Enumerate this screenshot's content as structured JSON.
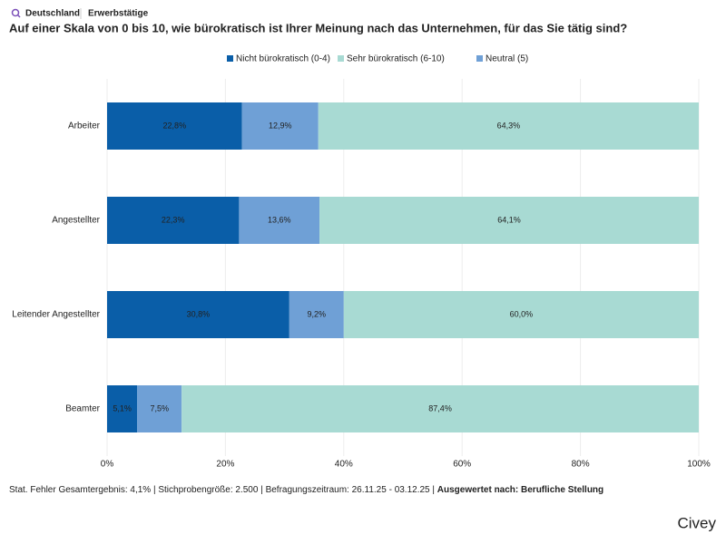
{
  "header": {
    "country": "Deutschland",
    "population": "Erwerbstätige"
  },
  "chart_data": {
    "type": "stacked_bar_horizontal",
    "title": "Auf einer Skala von 0 bis 10, wie bürokratisch ist Ihrer Meinung nach das Unternehmen, für das Sie tätig sind?",
    "categories": [
      "Arbeiter",
      "Angestellter",
      "Leitender Angestellter",
      "Beamter"
    ],
    "series": [
      {
        "name": "Nicht bürokratisch (0-4)",
        "color": "#0a5ea8",
        "values": [
          22.8,
          22.3,
          30.8,
          5.1
        ],
        "value_labels": [
          "22,8%",
          "22,3%",
          "30,8%",
          "5,1%"
        ]
      },
      {
        "name": "Sehr bürokratisch (6-10)",
        "color": "#a8dad3",
        "values": [
          64.3,
          64.1,
          60.0,
          87.4
        ],
        "value_labels": [
          "64,3%",
          "64,1%",
          "60,0%",
          "87,4%"
        ]
      },
      {
        "name": "Neutral (5)",
        "color": "#6fa0d6",
        "values": [
          12.9,
          13.6,
          9.2,
          7.5
        ],
        "value_labels": [
          "12,9%",
          "13,6%",
          "9,2%",
          "7,5%"
        ]
      }
    ],
    "xlim": [
      0,
      100
    ],
    "xticks": [
      {
        "value": 0,
        "label": "0%"
      },
      {
        "value": 20,
        "label": "20%"
      },
      {
        "value": 40,
        "label": "40%"
      },
      {
        "value": 60,
        "label": "60%"
      },
      {
        "value": 80,
        "label": "80%"
      },
      {
        "value": 100,
        "label": "100%"
      }
    ],
    "grid": true
  },
  "footer": {
    "info": "Stat. Fehler Gesamtergebnis: 4,1% | Stichprobengröße: 2.500 | Befragungszeitraum: 26.11.25 - 03.12.25 |",
    "grouping": "Ausgewertet nach: Berufliche Stellung",
    "brand": "Civey"
  }
}
